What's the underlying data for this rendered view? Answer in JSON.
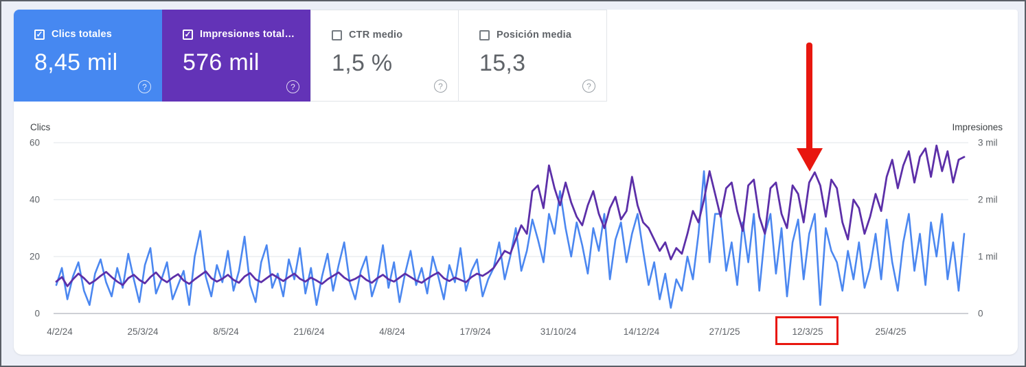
{
  "page": {
    "background": "#eceff7",
    "panel_background": "#ffffff"
  },
  "metric_cards": [
    {
      "label": "Clics totales",
      "value": "8,45 mil",
      "checked": true,
      "bg": "#4688f1",
      "selected": true
    },
    {
      "label": "Impresiones total…",
      "value": "576 mil",
      "checked": true,
      "bg": "#6333b7",
      "selected": true
    },
    {
      "label": "CTR medio",
      "value": "1,5 %",
      "checked": false,
      "bg": "#ffffff",
      "selected": false
    },
    {
      "label": "Posición media",
      "value": "15,3",
      "checked": false,
      "bg": "#ffffff",
      "selected": false
    }
  ],
  "chart_data": {
    "type": "line",
    "title": "",
    "left_axis": {
      "label": "Clics",
      "tick_labels": [
        "60",
        "40",
        "20",
        "0"
      ],
      "range": [
        0,
        60
      ],
      "grid": true
    },
    "right_axis": {
      "label": "Impresiones",
      "tick_labels": [
        "3 mil",
        "2 mil",
        "1 mil",
        "0"
      ],
      "range": [
        0,
        3000
      ],
      "grid": true
    },
    "x_tick_labels": [
      "4/2/24",
      "25/3/24",
      "8/5/24",
      "21/6/24",
      "4/8/24",
      "17/9/24",
      "31/10/24",
      "14/12/24",
      "27/1/25",
      "12/3/25",
      "25/4/25"
    ],
    "legend_position": "none",
    "series": [
      {
        "name": "Clics",
        "axis": "left",
        "color": "#4b87f0",
        "max": 60,
        "values": [
          10,
          16,
          5,
          13,
          18,
          8,
          3,
          14,
          19,
          11,
          6,
          16,
          9,
          21,
          12,
          4,
          17,
          23,
          7,
          12,
          18,
          5,
          10,
          15,
          3,
          20,
          29,
          13,
          6,
          17,
          11,
          22,
          8,
          15,
          27,
          10,
          4,
          18,
          24,
          9,
          14,
          6,
          19,
          12,
          23,
          7,
          16,
          3,
          13,
          21,
          8,
          17,
          25,
          11,
          5,
          15,
          20,
          6,
          12,
          24,
          9,
          18,
          4,
          14,
          22,
          10,
          16,
          7,
          20,
          13,
          5,
          17,
          11,
          23,
          8,
          15,
          19,
          6,
          12,
          16,
          25,
          12,
          20,
          30,
          15,
          22,
          33,
          26,
          18,
          35,
          28,
          43,
          30,
          20,
          32,
          24,
          14,
          30,
          22,
          35,
          12,
          26,
          32,
          18,
          28,
          35,
          22,
          10,
          18,
          5,
          14,
          2,
          12,
          8,
          20,
          12,
          28,
          50,
          18,
          35,
          35,
          15,
          25,
          10,
          32,
          18,
          35,
          8,
          28,
          35,
          14,
          30,
          6,
          25,
          33,
          12,
          28,
          35,
          3,
          30,
          22,
          18,
          8,
          22,
          12,
          25,
          9,
          16,
          28,
          12,
          33,
          18,
          8,
          25,
          35,
          15,
          28,
          10,
          32,
          20,
          35,
          12,
          25,
          8,
          28
        ]
      },
      {
        "name": "Impresiones",
        "axis": "right",
        "color": "#5c2fa8",
        "max": 3000,
        "values": [
          560,
          640,
          480,
          600,
          700,
          620,
          520,
          580,
          660,
          730,
          640,
          560,
          500,
          620,
          680,
          590,
          530,
          640,
          720,
          610,
          550,
          630,
          690,
          580,
          520,
          600,
          670,
          740,
          620,
          560,
          610,
          680,
          590,
          540,
          650,
          710,
          600,
          550,
          620,
          690,
          630,
          570,
          640,
          700,
          610,
          560,
          630,
          580,
          520,
          600,
          660,
          720,
          630,
          570,
          610,
          670,
          590,
          540,
          620,
          680,
          600,
          560,
          630,
          700,
          640,
          580,
          540,
          610,
          670,
          720,
          620,
          570,
          630,
          590,
          550,
          640,
          700,
          660,
          720,
          800,
          950,
          1100,
          1050,
          1300,
          1550,
          1400,
          2150,
          2250,
          1850,
          2600,
          2200,
          1900,
          2300,
          1950,
          1700,
          1550,
          1900,
          2150,
          1750,
          1500,
          1850,
          2050,
          1650,
          1800,
          2400,
          1900,
          1600,
          1500,
          1300,
          1100,
          1250,
          950,
          1150,
          1050,
          1400,
          1800,
          1600,
          2000,
          2500,
          2100,
          1700,
          2200,
          2300,
          1800,
          1450,
          2250,
          2350,
          1700,
          1400,
          2200,
          2300,
          1750,
          1500,
          2250,
          2100,
          1600,
          2300,
          2480,
          2250,
          1700,
          2350,
          2200,
          1600,
          1300,
          2000,
          1850,
          1400,
          1700,
          2100,
          1800,
          2400,
          2700,
          2200,
          2600,
          2850,
          2300,
          2750,
          2900,
          2400,
          2950,
          2500,
          2850,
          2300,
          2700,
          2750
        ]
      }
    ]
  },
  "annotations": {
    "arrow_color": "#e8170f",
    "highlight_box_color": "#e8170f",
    "highlighted_x_label": "12/3/25"
  }
}
